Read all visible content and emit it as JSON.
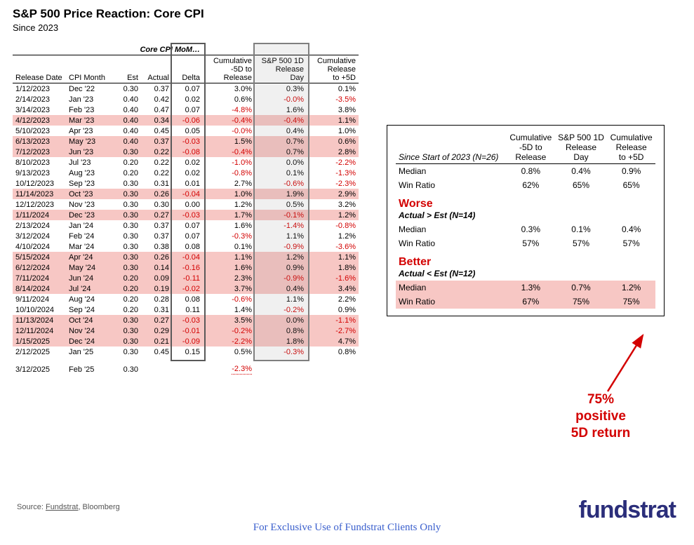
{
  "title": "S&P 500 Price Reaction: Core CPI",
  "subtitle": "Since 2023",
  "group_header": "Core CPI MoM…",
  "columns": {
    "release_date": "Release Date",
    "cpi_month": "CPI Month",
    "est": "Est",
    "actual": "Actual",
    "delta": "Delta",
    "cum_neg5": "Cumulative\n-5D to\nRelease",
    "sp_1d": "S&P 500 1D\nRelease\nDay",
    "cum_pos5": "Cumulative\nRelease\nto +5D"
  },
  "rows": [
    {
      "rd": "1/12/2023",
      "cm": "Dec '22",
      "est": "0.30",
      "act": "0.37",
      "delta": "0.07",
      "c1": "3.0%",
      "c2": "0.3%",
      "c3": "0.1%",
      "hl": false
    },
    {
      "rd": "2/14/2023",
      "cm": "Jan '23",
      "est": "0.40",
      "act": "0.42",
      "delta": "0.02",
      "c1": "0.6%",
      "c2": "-0.0%",
      "c3": "-3.5%",
      "hl": false
    },
    {
      "rd": "3/14/2023",
      "cm": "Feb '23",
      "est": "0.40",
      "act": "0.47",
      "delta": "0.07",
      "c1": "-4.8%",
      "c2": "1.6%",
      "c3": "3.8%",
      "hl": false
    },
    {
      "rd": "4/12/2023",
      "cm": "Mar '23",
      "est": "0.40",
      "act": "0.34",
      "delta": "-0.06",
      "c1": "-0.4%",
      "c2": "-0.4%",
      "c3": "1.1%",
      "hl": true
    },
    {
      "rd": "5/10/2023",
      "cm": "Apr '23",
      "est": "0.40",
      "act": "0.45",
      "delta": "0.05",
      "c1": "-0.0%",
      "c2": "0.4%",
      "c3": "1.0%",
      "hl": false
    },
    {
      "rd": "6/13/2023",
      "cm": "May '23",
      "est": "0.40",
      "act": "0.37",
      "delta": "-0.03",
      "c1": "1.5%",
      "c2": "0.7%",
      "c3": "0.6%",
      "hl": true
    },
    {
      "rd": "7/12/2023",
      "cm": "Jun '23",
      "est": "0.30",
      "act": "0.22",
      "delta": "-0.08",
      "c1": "-0.4%",
      "c2": "0.7%",
      "c3": "2.8%",
      "hl": true
    },
    {
      "rd": "8/10/2023",
      "cm": "Jul '23",
      "est": "0.20",
      "act": "0.22",
      "delta": "0.02",
      "c1": "-1.0%",
      "c2": "0.0%",
      "c3": "-2.2%",
      "hl": false
    },
    {
      "rd": "9/13/2023",
      "cm": "Aug '23",
      "est": "0.20",
      "act": "0.22",
      "delta": "0.02",
      "c1": "-0.8%",
      "c2": "0.1%",
      "c3": "-1.3%",
      "hl": false
    },
    {
      "rd": "10/12/2023",
      "cm": "Sep '23",
      "est": "0.30",
      "act": "0.31",
      "delta": "0.01",
      "c1": "2.7%",
      "c2": "-0.6%",
      "c3": "-2.3%",
      "hl": false
    },
    {
      "rd": "11/14/2023",
      "cm": "Oct '23",
      "est": "0.30",
      "act": "0.26",
      "delta": "-0.04",
      "c1": "1.0%",
      "c2": "1.9%",
      "c3": "2.9%",
      "hl": true
    },
    {
      "rd": "12/12/2023",
      "cm": "Nov '23",
      "est": "0.30",
      "act": "0.30",
      "delta": "0.00",
      "c1": "1.2%",
      "c2": "0.5%",
      "c3": "3.2%",
      "hl": false
    },
    {
      "rd": "1/11/2024",
      "cm": "Dec '23",
      "est": "0.30",
      "act": "0.27",
      "delta": "-0.03",
      "c1": "1.7%",
      "c2": "-0.1%",
      "c3": "1.2%",
      "hl": true
    },
    {
      "rd": "2/13/2024",
      "cm": "Jan '24",
      "est": "0.30",
      "act": "0.37",
      "delta": "0.07",
      "c1": "1.6%",
      "c2": "-1.4%",
      "c3": "-0.8%",
      "hl": false
    },
    {
      "rd": "3/12/2024",
      "cm": "Feb '24",
      "est": "0.30",
      "act": "0.37",
      "delta": "0.07",
      "c1": "-0.3%",
      "c2": "1.1%",
      "c3": "1.2%",
      "hl": false
    },
    {
      "rd": "4/10/2024",
      "cm": "Mar '24",
      "est": "0.30",
      "act": "0.38",
      "delta": "0.08",
      "c1": "0.1%",
      "c2": "-0.9%",
      "c3": "-3.6%",
      "hl": false
    },
    {
      "rd": "5/15/2024",
      "cm": "Apr '24",
      "est": "0.30",
      "act": "0.26",
      "delta": "-0.04",
      "c1": "1.1%",
      "c2": "1.2%",
      "c3": "1.1%",
      "hl": true
    },
    {
      "rd": "6/12/2024",
      "cm": "May '24",
      "est": "0.30",
      "act": "0.14",
      "delta": "-0.16",
      "c1": "1.6%",
      "c2": "0.9%",
      "c3": "1.8%",
      "hl": true
    },
    {
      "rd": "7/11/2024",
      "cm": "Jun '24",
      "est": "0.20",
      "act": "0.09",
      "delta": "-0.11",
      "c1": "2.3%",
      "c2": "-0.9%",
      "c3": "-1.6%",
      "hl": true
    },
    {
      "rd": "8/14/2024",
      "cm": "Jul '24",
      "est": "0.20",
      "act": "0.19",
      "delta": "-0.02",
      "c1": "3.7%",
      "c2": "0.4%",
      "c3": "3.4%",
      "hl": true
    },
    {
      "rd": "9/11/2024",
      "cm": "Aug '24",
      "est": "0.20",
      "act": "0.28",
      "delta": "0.08",
      "c1": "-0.6%",
      "c2": "1.1%",
      "c3": "2.2%",
      "hl": false
    },
    {
      "rd": "10/10/2024",
      "cm": "Sep '24",
      "est": "0.20",
      "act": "0.31",
      "delta": "0.11",
      "c1": "1.4%",
      "c2": "-0.2%",
      "c3": "0.9%",
      "hl": false
    },
    {
      "rd": "11/13/2024",
      "cm": "Oct '24",
      "est": "0.30",
      "act": "0.27",
      "delta": "-0.03",
      "c1": "3.5%",
      "c2": "0.0%",
      "c3": "-1.1%",
      "hl": true
    },
    {
      "rd": "12/11/2024",
      "cm": "Nov '24",
      "est": "0.30",
      "act": "0.29",
      "delta": "-0.01",
      "c1": "-0.2%",
      "c2": "0.8%",
      "c3": "-2.7%",
      "hl": true
    },
    {
      "rd": "1/15/2025",
      "cm": "Dec '24",
      "est": "0.30",
      "act": "0.21",
      "delta": "-0.09",
      "c1": "-2.2%",
      "c2": "1.8%",
      "c3": "4.7%",
      "hl": true
    },
    {
      "rd": "2/12/2025",
      "cm": "Jan '25",
      "est": "0.30",
      "act": "0.45",
      "delta": "0.15",
      "c1": "0.5%",
      "c2": "-0.3%",
      "c3": "0.8%",
      "hl": false
    }
  ],
  "pending_row": {
    "rd": "3/12/2025",
    "cm": "Feb '25",
    "est": "0.30",
    "c1": "-2.3%"
  },
  "summary": {
    "header_since": "Since Start of 2023 (N=26)",
    "cols": {
      "c1": "Cumulative\n-5D to\nRelease",
      "c2": "S&P 500 1D\nRelease\nDay",
      "c3": "Cumulative\nRelease\nto +5D"
    },
    "overall": {
      "median": [
        "0.8%",
        "0.4%",
        "0.9%"
      ],
      "win": [
        "62%",
        "65%",
        "65%"
      ]
    },
    "worse_title": "Worse",
    "worse_sub": "Actual > Est  (N=14)",
    "worse": {
      "median": [
        "0.3%",
        "0.1%",
        "0.4%"
      ],
      "win": [
        "57%",
        "57%",
        "57%"
      ]
    },
    "better_title": "Better",
    "better_sub": "Actual < Est  (N=12)",
    "better": {
      "median": [
        "1.3%",
        "0.7%",
        "1.2%"
      ],
      "win": [
        "67%",
        "75%",
        "75%"
      ]
    },
    "labels": {
      "median": "Median",
      "win": "Win Ratio"
    }
  },
  "annotation": "75%\npositive\n5D return",
  "source": "Source: Fundstrat, Bloomberg",
  "source_link": "Fundstrat",
  "disclaimer": "For Exclusive Use of Fundstrat Clients Only",
  "logo": "fundstrat",
  "colors": {
    "neg": "#d30000",
    "hl": "#f7c7c4",
    "box": "#595959",
    "logo": "#2b2e7a",
    "disclaimer": "#3a5fcd"
  }
}
